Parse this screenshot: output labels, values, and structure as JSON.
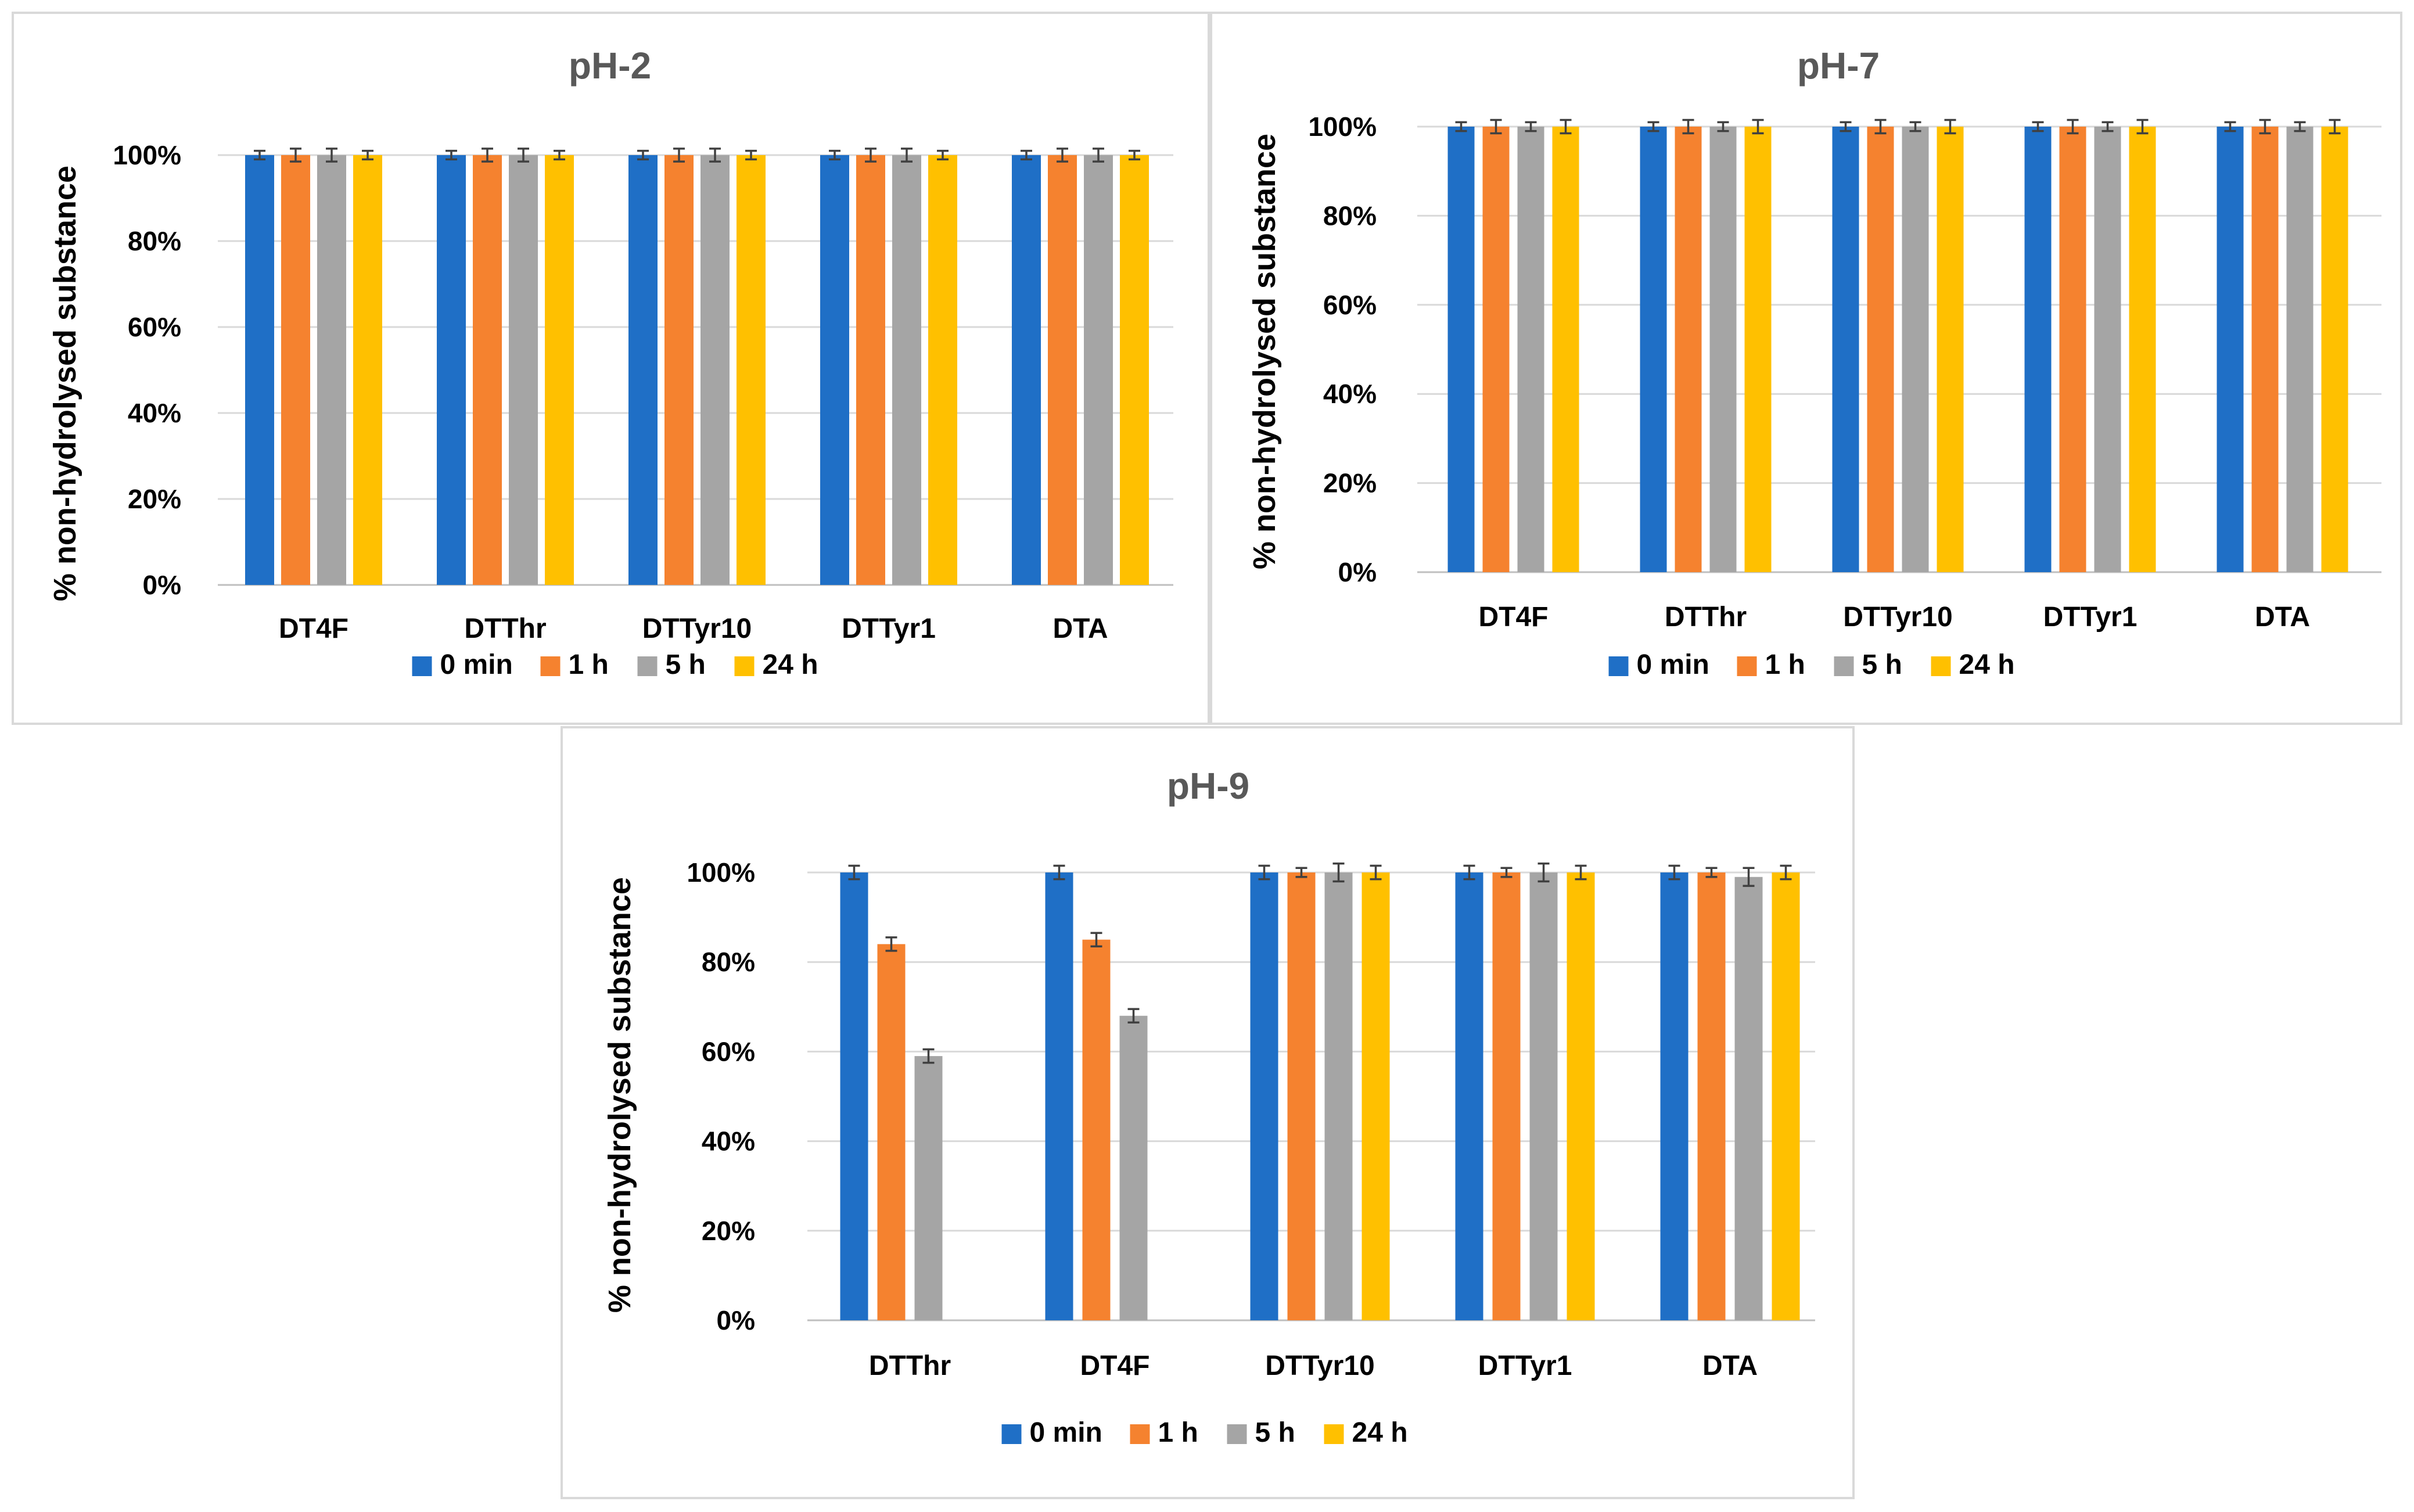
{
  "colors": {
    "0 min": "#1f6fc6",
    "1 h": "#f5822f",
    "5 h": "#a5a5a5",
    "24 h": "#ffc000"
  },
  "chart_data": [
    {
      "type": "bar",
      "title": "pH-2",
      "ylabel": "% non-hydrolysed substance",
      "ylim": [
        0,
        100
      ],
      "yticks": [
        "0%",
        "20%",
        "40%",
        "60%",
        "80%",
        "100%"
      ],
      "legend": "bottom",
      "categories": [
        "DT4F",
        "DTThr",
        "DTTyr10",
        "DTTyr1",
        "DTA"
      ],
      "series": [
        {
          "name": "0 min",
          "values": [
            100,
            100,
            100,
            100,
            100
          ],
          "errors": [
            1,
            1,
            1,
            1,
            1
          ]
        },
        {
          "name": "1 h",
          "values": [
            100,
            100,
            100,
            100,
            100
          ],
          "errors": [
            1.5,
            1.5,
            1.5,
            1.5,
            1.5
          ]
        },
        {
          "name": "5 h",
          "values": [
            100,
            100,
            100,
            100,
            100
          ],
          "errors": [
            1.5,
            1.5,
            1.5,
            1.5,
            1.5
          ]
        },
        {
          "name": "24 h",
          "values": [
            100,
            100,
            100,
            100,
            100
          ],
          "errors": [
            1,
            1,
            1,
            1,
            1
          ]
        }
      ]
    },
    {
      "type": "bar",
      "title": "pH-7",
      "ylabel": "% non-hydrolysed substance",
      "ylim": [
        0,
        100
      ],
      "yticks": [
        "0%",
        "20%",
        "40%",
        "60%",
        "80%",
        "100%"
      ],
      "legend": "bottom",
      "categories": [
        "DT4F",
        "DTThr",
        "DTTyr10",
        "DTTyr1",
        "DTA"
      ],
      "series": [
        {
          "name": "0 min",
          "values": [
            100,
            100,
            100,
            100,
            100
          ],
          "errors": [
            1,
            1,
            1,
            1,
            1
          ]
        },
        {
          "name": "1 h",
          "values": [
            100,
            100,
            100,
            100,
            100
          ],
          "errors": [
            1.5,
            1.5,
            1.5,
            1.5,
            1.5
          ]
        },
        {
          "name": "5 h",
          "values": [
            100,
            100,
            100,
            100,
            100
          ],
          "errors": [
            1,
            1,
            1,
            1,
            1
          ]
        },
        {
          "name": "24 h",
          "values": [
            100,
            100,
            100,
            100,
            100
          ],
          "errors": [
            1.5,
            1.5,
            1.5,
            1.5,
            1.5
          ]
        }
      ]
    },
    {
      "type": "bar",
      "title": "pH-9",
      "ylabel": "% non-hydrolysed substance",
      "ylim": [
        0,
        100
      ],
      "yticks": [
        "0%",
        "20%",
        "40%",
        "60%",
        "80%",
        "100%"
      ],
      "legend": "bottom",
      "categories": [
        "DTThr",
        "DT4F",
        "DTTyr10",
        "DTTyr1",
        "DTA"
      ],
      "series": [
        {
          "name": "0 min",
          "values": [
            100,
            100,
            100,
            100,
            100
          ],
          "errors": [
            1.5,
            1.5,
            1.5,
            1.5,
            1.5
          ]
        },
        {
          "name": "1 h",
          "values": [
            84,
            85,
            100,
            100,
            100
          ],
          "errors": [
            1.5,
            1.5,
            1,
            1,
            1
          ]
        },
        {
          "name": "5 h",
          "values": [
            59,
            68,
            100,
            100,
            99
          ],
          "errors": [
            1.5,
            1.5,
            2,
            2,
            2
          ]
        },
        {
          "name": "24 h",
          "values": [
            null,
            null,
            100,
            100,
            100
          ],
          "errors": [
            null,
            null,
            1.5,
            1.5,
            1.5
          ]
        }
      ]
    }
  ]
}
